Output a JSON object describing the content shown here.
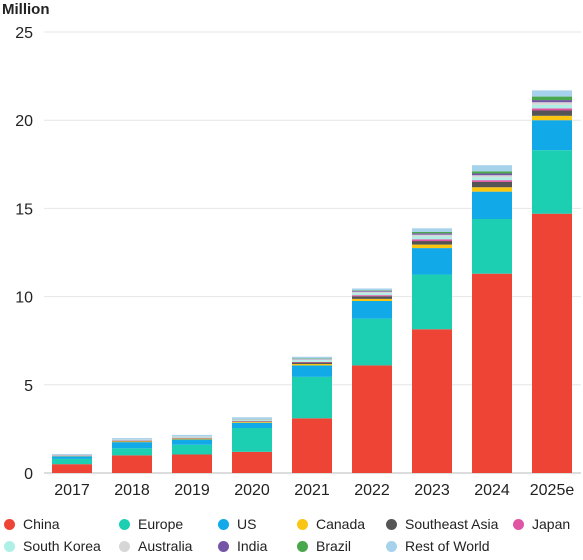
{
  "chart_data": {
    "type": "bar",
    "stacked": true,
    "ylabel": "Million",
    "ylim": [
      0,
      25
    ],
    "yticks": [
      0,
      5,
      10,
      15,
      20,
      25
    ],
    "grid": "horizontal",
    "legend_position": "bottom",
    "categories": [
      "2017",
      "2018",
      "2019",
      "2020",
      "2021",
      "2022",
      "2023",
      "2024",
      "2025e"
    ],
    "series": [
      {
        "name": "China",
        "color": "#ee4436",
        "values": [
          0.5,
          1.0,
          1.05,
          1.2,
          3.1,
          6.1,
          8.15,
          11.3,
          14.7
        ]
      },
      {
        "name": "Europe",
        "color": "#1ccfb2",
        "values": [
          0.3,
          0.4,
          0.55,
          1.35,
          2.35,
          2.65,
          3.1,
          3.1,
          3.6
        ]
      },
      {
        "name": "US",
        "color": "#11a9e8",
        "values": [
          0.15,
          0.35,
          0.3,
          0.3,
          0.65,
          1.0,
          1.5,
          1.55,
          1.7
        ]
      },
      {
        "name": "Canada",
        "color": "#f8c613",
        "values": [
          0.02,
          0.04,
          0.05,
          0.05,
          0.08,
          0.12,
          0.2,
          0.25,
          0.25
        ]
      },
      {
        "name": "Southeast Asia",
        "color": "#555555",
        "values": [
          0.01,
          0.02,
          0.02,
          0.03,
          0.08,
          0.15,
          0.2,
          0.3,
          0.3
        ]
      },
      {
        "name": "Japan",
        "color": "#e055a3",
        "values": [
          0.02,
          0.03,
          0.03,
          0.03,
          0.04,
          0.06,
          0.1,
          0.1,
          0.12
        ]
      },
      {
        "name": "South Korea",
        "color": "#aef0e6",
        "values": [
          0.02,
          0.04,
          0.05,
          0.06,
          0.1,
          0.12,
          0.16,
          0.16,
          0.2
        ]
      },
      {
        "name": "Australia",
        "color": "#d6d6d6",
        "values": [
          0.01,
          0.02,
          0.02,
          0.02,
          0.05,
          0.08,
          0.1,
          0.12,
          0.15
        ]
      },
      {
        "name": "India",
        "color": "#7354a6",
        "values": [
          0.0,
          0.0,
          0.01,
          0.01,
          0.02,
          0.05,
          0.08,
          0.1,
          0.12
        ]
      },
      {
        "name": "Brazil",
        "color": "#4aa84c",
        "values": [
          0.0,
          0.0,
          0.0,
          0.01,
          0.02,
          0.03,
          0.08,
          0.12,
          0.2
        ]
      },
      {
        "name": "Rest of World",
        "color": "#a6d2ec",
        "values": [
          0.05,
          0.08,
          0.08,
          0.1,
          0.1,
          0.1,
          0.2,
          0.35,
          0.35
        ]
      }
    ]
  }
}
